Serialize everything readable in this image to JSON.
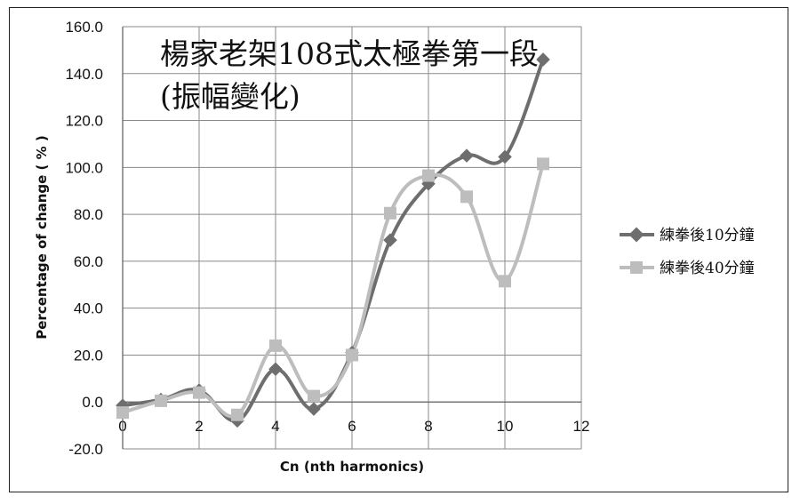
{
  "chart_data": {
    "type": "line",
    "title": "楊家老架108式太極拳第一段",
    "subtitle": "(振幅變化)",
    "xlabel": "Cn (nth harmonics)",
    "ylabel": "Percentage of change ( % )",
    "xlim": [
      0,
      12
    ],
    "ylim": [
      -20,
      160
    ],
    "xticks": [
      "0",
      "2",
      "4",
      "6",
      "8",
      "10",
      "12"
    ],
    "yticks": [
      "160.0",
      "140.0",
      "120.0",
      "100.0",
      "80.0",
      "60.0",
      "40.0",
      "20.0",
      "0.0",
      "-20.0"
    ],
    "grid": true,
    "legend_position": "right",
    "series": [
      {
        "name": "練拳後10分鐘",
        "color": "#6e6e6e",
        "marker": "diamond",
        "x": [
          0,
          1,
          2,
          3,
          4,
          5,
          6,
          7,
          8,
          9,
          10,
          11
        ],
        "y": [
          -1.5,
          1,
          5,
          -8,
          14,
          -3,
          21,
          69,
          93,
          105,
          104.5,
          146
        ]
      },
      {
        "name": "練拳後40分鐘",
        "color": "#bdbdbd",
        "marker": "square",
        "x": [
          0,
          1,
          2,
          3,
          4,
          5,
          6,
          7,
          8,
          9,
          10,
          11
        ],
        "y": [
          -4.5,
          0.5,
          4,
          -5.5,
          24,
          2.5,
          20,
          80.5,
          96.5,
          87.5,
          51.5,
          101.5
        ]
      }
    ]
  }
}
